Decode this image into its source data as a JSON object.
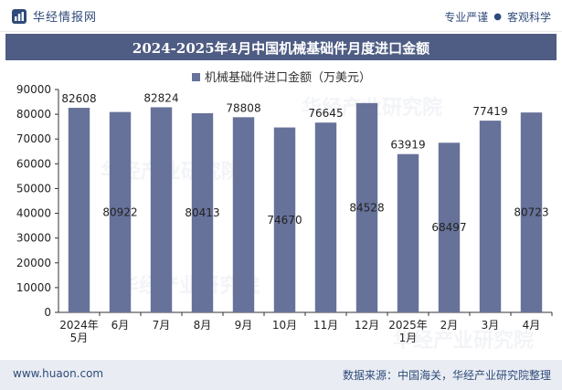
{
  "header": {
    "brand": "华经情报网",
    "slogan_left": "专业严谨",
    "slogan_right": "客观科学"
  },
  "title": "2024-2025年4月中国机械基础件月度进口金额",
  "footer": {
    "url": "www.huaon.com",
    "source": "数据来源：中国海关，华经产业研究院整理"
  },
  "watermark": "华经产业研究院",
  "colors": {
    "bar": "#67729a",
    "title_bg": "#4f5d84",
    "text": "#2f4a7a"
  },
  "chart_data": {
    "type": "bar",
    "legend": "机械基础件进口金额（万美元）",
    "legend_position": "top-center",
    "categories": [
      [
        "2024年",
        "5月"
      ],
      [
        "6月"
      ],
      [
        "7月"
      ],
      [
        "8月"
      ],
      [
        "9月"
      ],
      [
        "10月"
      ],
      [
        "11月"
      ],
      [
        "12月"
      ],
      [
        "2025年",
        "1月"
      ],
      [
        "2月"
      ],
      [
        "3月"
      ],
      [
        "4月"
      ]
    ],
    "values": [
      82608,
      80922,
      82824,
      80413,
      78808,
      74670,
      76645,
      84528,
      63919,
      68497,
      77419,
      80723
    ],
    "label_positions": [
      "top",
      "middle",
      "top",
      "middle",
      "top",
      "middle",
      "top",
      "middle",
      "top",
      "middle",
      "top",
      "middle"
    ],
    "ylim": [
      0,
      90000
    ],
    "yticks": [
      0,
      10000,
      20000,
      30000,
      40000,
      50000,
      60000,
      70000,
      80000,
      90000
    ],
    "grid": false
  }
}
